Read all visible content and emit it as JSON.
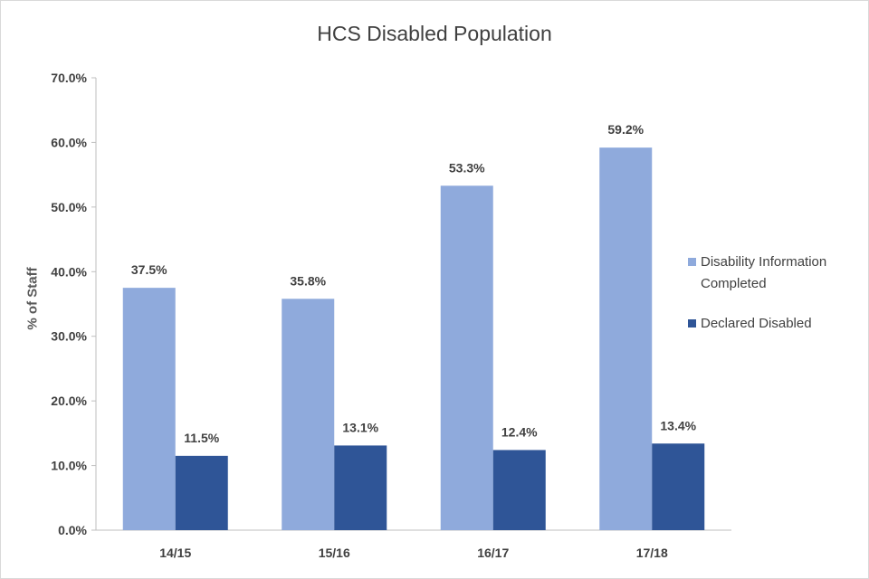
{
  "chart_data": {
    "type": "bar",
    "title": "HCS Disabled Population",
    "xlabel": "",
    "ylabel": "% of Staff",
    "categories": [
      "14/15",
      "15/16",
      "16/17",
      "17/18"
    ],
    "series": [
      {
        "name": "Disability Information Completed",
        "values": [
          37.5,
          35.8,
          53.3,
          59.2
        ],
        "labels": [
          "37.5%",
          "35.8%",
          "53.3%",
          "59.2%"
        ],
        "color": "#8faadc"
      },
      {
        "name": "Declared Disabled",
        "values": [
          11.5,
          13.1,
          12.4,
          13.4
        ],
        "labels": [
          "11.5%",
          "13.1%",
          "12.4%",
          "13.4%"
        ],
        "color": "#2f5597"
      }
    ],
    "ylim": [
      0,
      70
    ],
    "yticks": [
      0,
      10,
      20,
      30,
      40,
      50,
      60,
      70
    ],
    "ytick_labels": [
      "0.0%",
      "10.0%",
      "20.0%",
      "30.0%",
      "40.0%",
      "50.0%",
      "60.0%",
      "70.0%"
    ],
    "grid": false,
    "legend_position": "right"
  },
  "legend": {
    "item0": "Disability Information Completed",
    "item1": "Declared Disabled"
  }
}
